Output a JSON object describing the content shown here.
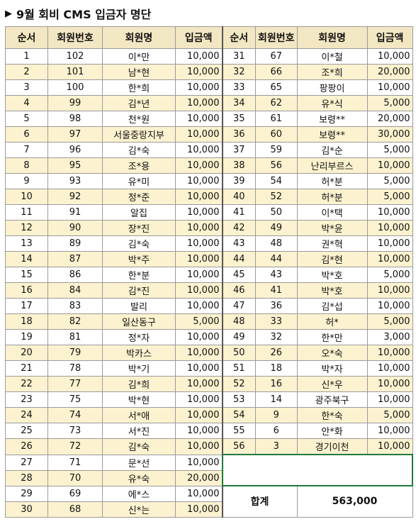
{
  "title": "9월 회비 CMS 입금자 명단",
  "headers": [
    "순서",
    "회원번호",
    "회원명",
    "입금액"
  ],
  "left_rows": [
    [
      "1",
      "102",
      "이*만",
      "10,000"
    ],
    [
      "2",
      "101",
      "남*현",
      "10,000"
    ],
    [
      "3",
      "100",
      "한*희",
      "10,000"
    ],
    [
      "4",
      "99",
      "김*년",
      "10,000"
    ],
    [
      "5",
      "98",
      "천*원",
      "10,000"
    ],
    [
      "6",
      "97",
      "서울중랑지부",
      "10,000"
    ],
    [
      "7",
      "96",
      "김*숙",
      "10,000"
    ],
    [
      "8",
      "95",
      "조*용",
      "10,000"
    ],
    [
      "9",
      "93",
      "유*미",
      "10,000"
    ],
    [
      "10",
      "92",
      "정*준",
      "10,000"
    ],
    [
      "11",
      "91",
      "알집",
      "10,000"
    ],
    [
      "12",
      "90",
      "장*진",
      "10,000"
    ],
    [
      "13",
      "89",
      "김*숙",
      "10,000"
    ],
    [
      "14",
      "87",
      "박*주",
      "10,000"
    ],
    [
      "15",
      "86",
      "한*분",
      "10,000"
    ],
    [
      "16",
      "84",
      "김*진",
      "10,000"
    ],
    [
      "17",
      "83",
      "발리",
      "10,000"
    ],
    [
      "18",
      "82",
      "일산동구",
      "5,000"
    ],
    [
      "19",
      "81",
      "정*자",
      "10,000"
    ],
    [
      "20",
      "79",
      "박카스",
      "10,000"
    ],
    [
      "21",
      "78",
      "박*기",
      "10,000"
    ],
    [
      "22",
      "77",
      "김*희",
      "10,000"
    ],
    [
      "23",
      "75",
      "박*현",
      "10,000"
    ],
    [
      "24",
      "74",
      "서*애",
      "10,000"
    ],
    [
      "25",
      "73",
      "서*진",
      "10,000"
    ],
    [
      "26",
      "72",
      "김*숙",
      "10,000"
    ],
    [
      "27",
      "71",
      "문*선",
      "10,000"
    ],
    [
      "28",
      "70",
      "유*숙",
      "20,000"
    ],
    [
      "29",
      "69",
      "에*스",
      "10,000"
    ],
    [
      "30",
      "68",
      "신*는",
      "10,000"
    ]
  ],
  "right_rows": [
    [
      "31",
      "67",
      "이*철",
      "10,000"
    ],
    [
      "32",
      "66",
      "조*희",
      "20,000"
    ],
    [
      "33",
      "65",
      "팡팡이",
      "10,000"
    ],
    [
      "34",
      "62",
      "유*식",
      "5,000"
    ],
    [
      "35",
      "61",
      "보령**",
      "20,000"
    ],
    [
      "36",
      "60",
      "보령**",
      "30,000"
    ],
    [
      "37",
      "59",
      "김*순",
      "5,000"
    ],
    [
      "38",
      "56",
      "난리부르스",
      "10,000"
    ],
    [
      "39",
      "54",
      "허*분",
      "5,000"
    ],
    [
      "40",
      "52",
      "허*분",
      "5,000"
    ],
    [
      "41",
      "50",
      "이*택",
      "10,000"
    ],
    [
      "42",
      "49",
      "박*윤",
      "10,000"
    ],
    [
      "43",
      "48",
      "권*혁",
      "10,000"
    ],
    [
      "44",
      "44",
      "김*현",
      "10,000"
    ],
    [
      "45",
      "43",
      "박*호",
      "5,000"
    ],
    [
      "46",
      "41",
      "박*호",
      "10,000"
    ],
    [
      "47",
      "36",
      "김*섭",
      "10,000"
    ],
    [
      "48",
      "33",
      "허*",
      "5,000"
    ],
    [
      "49",
      "32",
      "한*만",
      "3,000"
    ],
    [
      "50",
      "26",
      "오*숙",
      "10,000"
    ],
    [
      "51",
      "18",
      "박*자",
      "10,000"
    ],
    [
      "52",
      "16",
      "신*우",
      "10,000"
    ],
    [
      "53",
      "14",
      "광주북구",
      "10,000"
    ],
    [
      "54",
      "9",
      "한*숙",
      "5,000"
    ],
    [
      "55",
      "6",
      "안*화",
      "10,000"
    ],
    [
      "56",
      "3",
      "경기이천",
      "10,000"
    ]
  ],
  "total_label": "합계",
  "total_value": "563,000"
}
